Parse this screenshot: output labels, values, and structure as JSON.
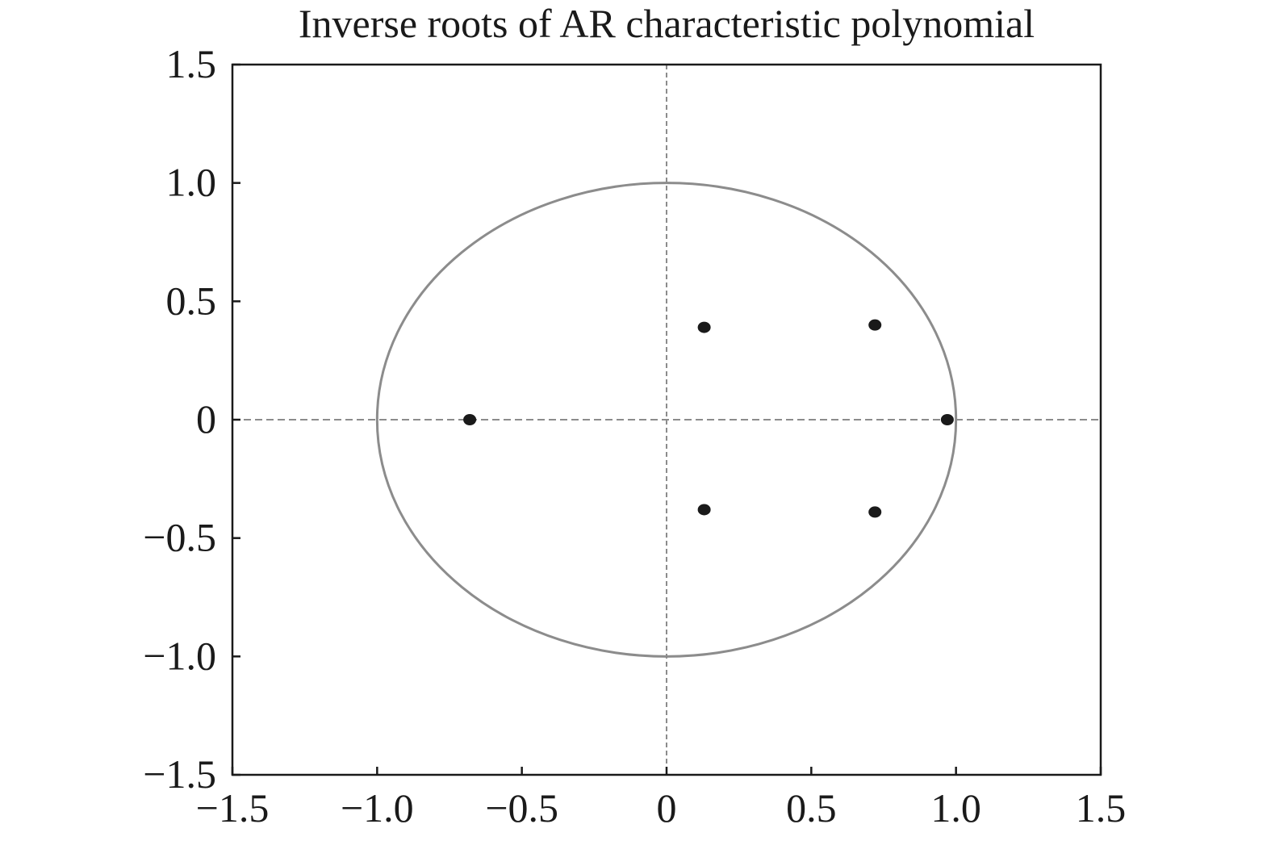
{
  "chart_data": {
    "type": "scatter",
    "title": "Inverse roots of AR characteristic polynomial",
    "xlabel": "",
    "ylabel": "",
    "xlim": [
      -1.5,
      1.5
    ],
    "ylim": [
      -1.5,
      1.5
    ],
    "xticks": [
      -1.5,
      -1.0,
      -0.5,
      0,
      0.5,
      1.0,
      1.5
    ],
    "yticks": [
      -1.5,
      -1.0,
      -0.5,
      0,
      0.5,
      1.0,
      1.5
    ],
    "xtick_labels": [
      "−1.5",
      "−1.0",
      "−0.5",
      "0",
      "0.5",
      "1.0",
      "1.5"
    ],
    "ytick_labels": [
      "−1.5",
      "−1.0",
      "−0.5",
      "0",
      "0.5",
      "1.0",
      "1.5"
    ],
    "unit_circle": {
      "radius": 1
    },
    "reference_lines": {
      "x": 0,
      "y": 0
    },
    "grid": false,
    "series": [
      {
        "points": [
          {
            "x": -0.68,
            "y": 0.0
          },
          {
            "x": 0.13,
            "y": 0.39
          },
          {
            "x": 0.13,
            "y": -0.38
          },
          {
            "x": 0.72,
            "y": 0.4
          },
          {
            "x": 0.72,
            "y": -0.39
          },
          {
            "x": 0.97,
            "y": 0.0
          }
        ]
      }
    ],
    "colors": {
      "points": "#1a1a1a",
      "circle": "#8c8c8c",
      "reference": "#8c8c8c",
      "axes": "#1a1a1a"
    }
  }
}
